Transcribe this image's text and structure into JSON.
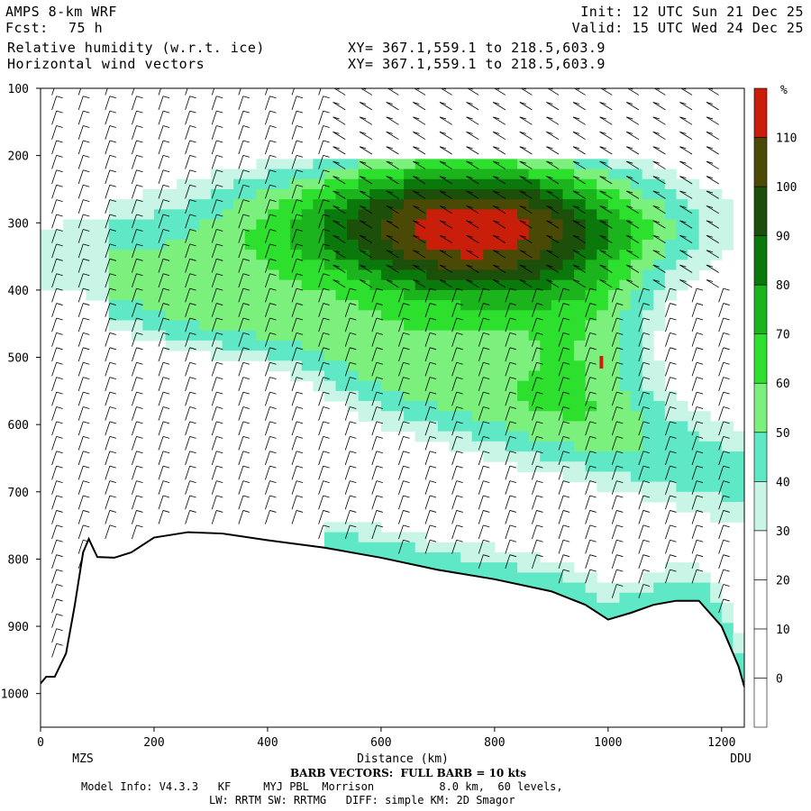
{
  "header": {
    "model": "AMPS 8-km WRF",
    "init": "Init: 12 UTC Sun 21 Dec 25",
    "fcst_label": "Fcst:",
    "fcst_value": "75 h",
    "valid": "Valid: 15 UTC Wed 24 Dec 25",
    "field1": "Relative humidity (w.r.t. ice)",
    "field1_xy": "XY= 367.1,559.1 to 218.5,603.9",
    "field2": "Horizontal wind vectors",
    "field2_xy": "XY= 367.1,559.1 to 218.5,603.9"
  },
  "chart_data": {
    "type": "heatmap",
    "title": "Relative humidity (w.r.t. ice)",
    "xlabel": "Distance (km)",
    "ylabel": "",
    "xlim": [
      0,
      1240
    ],
    "ylim": [
      1050,
      100
    ],
    "x_ticks": [
      0,
      200,
      400,
      600,
      800,
      1000,
      1200
    ],
    "y_ticks": [
      100,
      200,
      300,
      400,
      500,
      600,
      700,
      800,
      900,
      1000
    ],
    "x_endpoints": {
      "left": "MZS",
      "right": "DDU"
    },
    "colorbar": {
      "unit": "%",
      "levels": [
        0,
        10,
        20,
        30,
        40,
        50,
        60,
        70,
        80,
        90,
        100,
        110
      ],
      "colors": [
        "#ffffff",
        "#ffffff",
        "#ffffff",
        "#ffffff",
        "#c8f5e6",
        "#5ee8c6",
        "#7cf07c",
        "#2ee02e",
        "#1cb41c",
        "#0a780a",
        "#1c500a",
        "#4a4a06",
        "#c81e0a"
      ]
    },
    "terrain_pressure": [
      [
        0,
        985
      ],
      [
        10,
        975
      ],
      [
        25,
        975
      ],
      [
        45,
        940
      ],
      [
        60,
        870
      ],
      [
        75,
        790
      ],
      [
        85,
        770
      ],
      [
        100,
        797
      ],
      [
        130,
        798
      ],
      [
        160,
        790
      ],
      [
        200,
        768
      ],
      [
        260,
        760
      ],
      [
        320,
        762
      ],
      [
        400,
        772
      ],
      [
        500,
        783
      ],
      [
        600,
        798
      ],
      [
        700,
        816
      ],
      [
        800,
        830
      ],
      [
        900,
        848
      ],
      [
        960,
        868
      ],
      [
        1000,
        890
      ],
      [
        1040,
        880
      ],
      [
        1080,
        868
      ],
      [
        1120,
        862
      ],
      [
        1160,
        862
      ],
      [
        1200,
        900
      ],
      [
        1230,
        960
      ],
      [
        1240,
        990
      ]
    ],
    "wind_barbs": {
      "full_barb_kts": 10
    }
  },
  "footer": {
    "barb_note": "BARB VECTORS:  FULL BARB = 10 kts",
    "model_info": "Model Info: V4.3.3   KF     MYJ PBL  Morrison          8.0 km,  60 levels,",
    "model_info2": "LW: RRTM SW: RRTMG   DIFF: simple KM: 2D Smagor"
  }
}
